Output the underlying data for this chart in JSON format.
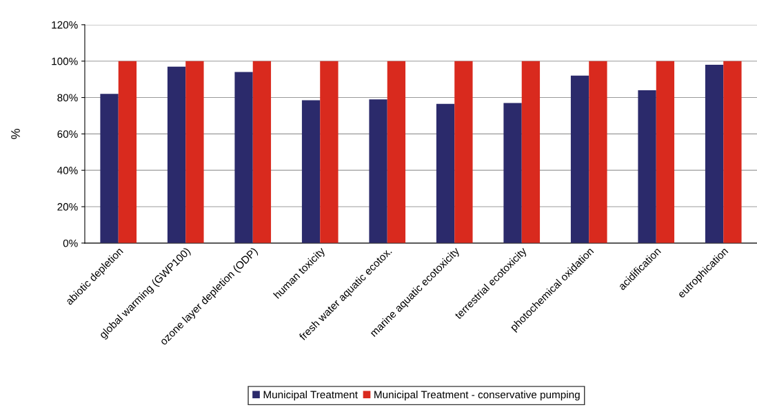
{
  "chart_data": {
    "type": "bar",
    "ylabel": "%",
    "categories": [
      "abiotic depletion",
      "global warming (GWP100)",
      "ozone layer depletion (ODP)",
      "human toxicity",
      "fresh water aquatic ecotox.",
      "marine aquatic ecotoxicity",
      "terrestrial ecotoxicity",
      "photochemical oxidation",
      "acidification",
      "eutrophication"
    ],
    "series": [
      {
        "name": "Municipal Treatment",
        "color": "#2b2a6b",
        "values": [
          82,
          97,
          94,
          78.5,
          79,
          76.5,
          77,
          92,
          84,
          98
        ]
      },
      {
        "name": "Municipal Treatment - conservative pumping",
        "color": "#d92a1e",
        "values": [
          100,
          100,
          100,
          100,
          100,
          100,
          100,
          100,
          100,
          100
        ]
      }
    ],
    "ylim": [
      0,
      120
    ],
    "yticks": [
      {
        "value": 0,
        "label": "0%"
      },
      {
        "value": 20,
        "label": "20%"
      },
      {
        "value": 40,
        "label": "40%"
      },
      {
        "value": 60,
        "label": "60%"
      },
      {
        "value": 80,
        "label": "80%"
      },
      {
        "value": 100,
        "label": "100%"
      },
      {
        "value": 120,
        "label": "120%"
      }
    ],
    "grid": "y",
    "legend": "bottom"
  }
}
